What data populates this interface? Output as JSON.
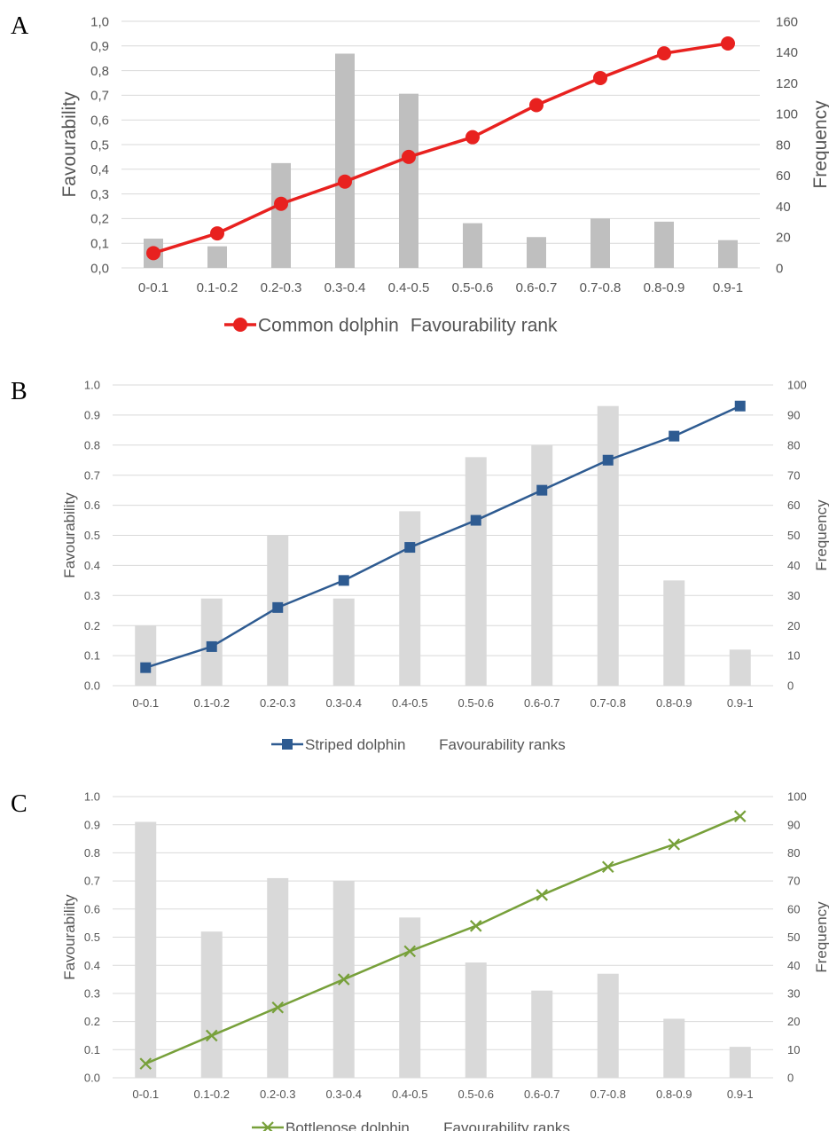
{
  "chart_data": [
    {
      "panel_label": "A",
      "type": "bar+line",
      "categories": [
        "0-0.1",
        "0.1-0.2",
        "0.2-0.3",
        "0.3-0.4",
        "0.4-0.5",
        "0.5-0.6",
        "0.6-0.7",
        "0.7-0.8",
        "0.8-0.9",
        "0.9-1"
      ],
      "series": [
        {
          "name": "Common dolphin",
          "kind": "line",
          "axis": "left",
          "marker": "circle",
          "color": "#e8211f",
          "values": [
            0.06,
            0.14,
            0.26,
            0.35,
            0.45,
            0.53,
            0.66,
            0.77,
            0.87,
            0.91
          ]
        },
        {
          "name": "Favourability rank",
          "kind": "bar",
          "axis": "right",
          "color": "#bfbfbf",
          "values": [
            19,
            14,
            68,
            139,
            113,
            29,
            20,
            32,
            30,
            18
          ]
        }
      ],
      "ylabel": "Favourability",
      "y2label": "Frequency",
      "ylim": [
        0,
        1.0
      ],
      "y2lim": [
        0,
        160
      ],
      "yticks": [
        "0,0",
        "0,1",
        "0,2",
        "0,3",
        "0,4",
        "0,5",
        "0,6",
        "0,7",
        "0,8",
        "0,9",
        "1,0"
      ],
      "y2ticks": [
        "0",
        "20",
        "40",
        "60",
        "80",
        "100",
        "120",
        "140",
        "160"
      ],
      "grid": true,
      "legend": "bottom"
    },
    {
      "panel_label": "B",
      "type": "bar+line",
      "categories": [
        "0-0.1",
        "0.1-0.2",
        "0.2-0.3",
        "0.3-0.4",
        "0.4-0.5",
        "0.5-0.6",
        "0.6-0.7",
        "0.7-0.8",
        "0.8-0.9",
        "0.9-1"
      ],
      "series": [
        {
          "name": "Striped dolphin",
          "kind": "line",
          "axis": "left",
          "marker": "square",
          "color": "#2e5b91",
          "values": [
            0.06,
            0.13,
            0.26,
            0.35,
            0.46,
            0.55,
            0.65,
            0.75,
            0.83,
            0.93
          ]
        },
        {
          "name": "Favourability ranks",
          "kind": "bar",
          "axis": "right",
          "color": "#d9d9d9",
          "values": [
            20,
            29,
            50,
            29,
            58,
            76,
            80,
            93,
            35,
            12
          ]
        }
      ],
      "ylabel": "Favourability",
      "y2label": "Frequency",
      "ylim": [
        0,
        1.0
      ],
      "y2lim": [
        0,
        100
      ],
      "yticks": [
        "0.0",
        "0.1",
        "0.2",
        "0.3",
        "0.4",
        "0.5",
        "0.6",
        "0.7",
        "0.8",
        "0.9",
        "1.0"
      ],
      "y2ticks": [
        "0",
        "10",
        "20",
        "30",
        "40",
        "50",
        "60",
        "70",
        "80",
        "90",
        "100"
      ],
      "grid": true,
      "legend": "bottom"
    },
    {
      "panel_label": "C",
      "type": "bar+line",
      "categories": [
        "0-0.1",
        "0.1-0.2",
        "0.2-0.3",
        "0.3-0.4",
        "0.4-0.5",
        "0.5-0.6",
        "0.6-0.7",
        "0.7-0.8",
        "0.8-0.9",
        "0.9-1"
      ],
      "series": [
        {
          "name": "Bottlenose dolphin",
          "kind": "line",
          "axis": "left",
          "marker": "x",
          "color": "#77a03a",
          "values": [
            0.05,
            0.15,
            0.25,
            0.35,
            0.45,
            0.54,
            0.65,
            0.75,
            0.83,
            0.93
          ]
        },
        {
          "name": "Favourability ranks",
          "kind": "bar",
          "axis": "right",
          "color": "#d9d9d9",
          "values": [
            91,
            52,
            71,
            70,
            57,
            41,
            31,
            37,
            21,
            11
          ]
        }
      ],
      "ylabel": "Favourability",
      "y2label": "Frequency",
      "ylim": [
        0,
        1.0
      ],
      "y2lim": [
        0,
        100
      ],
      "yticks": [
        "0.0",
        "0.1",
        "0.2",
        "0.3",
        "0.4",
        "0.5",
        "0.6",
        "0.7",
        "0.8",
        "0.9",
        "1.0"
      ],
      "y2ticks": [
        "0",
        "10",
        "20",
        "30",
        "40",
        "50",
        "60",
        "70",
        "80",
        "90",
        "100"
      ],
      "grid": true,
      "legend": "bottom"
    }
  ]
}
